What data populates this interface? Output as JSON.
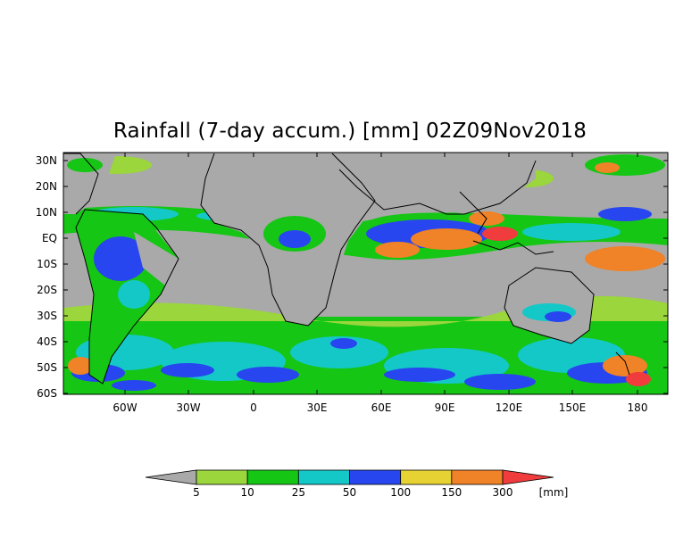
{
  "title": "Rainfall (7-day accum.) [mm] 02Z09Nov2018",
  "lat_labels": [
    "30N",
    "20N",
    "10N",
    "EQ",
    "10S",
    "20S",
    "30S",
    "40S",
    "50S",
    "60S"
  ],
  "lon_labels": [
    "60W",
    "30W",
    "0",
    "30E",
    "60E",
    "90E",
    "120E",
    "150E",
    "180"
  ],
  "colorbar": {
    "colors": [
      "#a9a9a9",
      "#9ad63c",
      "#15c615",
      "#14c8c8",
      "#2846f0",
      "#e6d232",
      "#f08228",
      "#f03c3c"
    ],
    "ticks": [
      "5",
      "10",
      "25",
      "50",
      "100",
      "150",
      "300"
    ],
    "unit": "[mm]"
  }
}
